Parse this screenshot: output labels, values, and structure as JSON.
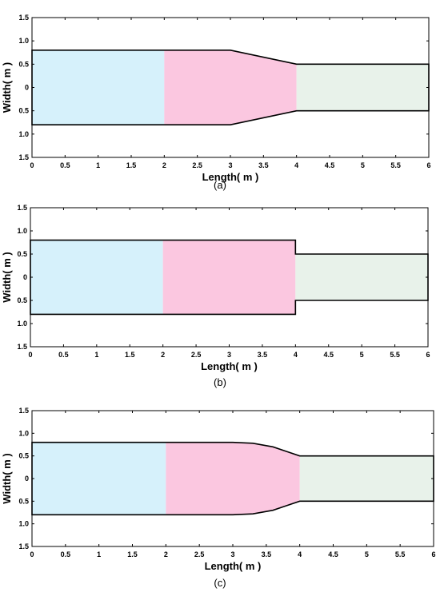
{
  "chart_data": [
    {
      "type": "diagram",
      "caption": "(a)",
      "xlabel": "Length( m )",
      "ylabel": "Width( m )",
      "xlim": [
        0,
        6
      ],
      "ylim": [
        -1.5,
        1.5
      ],
      "x_ticks": [
        "0",
        "0.5",
        "1",
        "1.5",
        "2",
        "2.5",
        "3",
        "3.5",
        "4",
        "4.5",
        "5",
        "5.5",
        "6"
      ],
      "y_ticks": [
        "1.5",
        "1.0",
        "0.5",
        "0",
        "0.5",
        "1.0",
        "1.5"
      ],
      "transition": "linear",
      "outline": [
        [
          0,
          0.8
        ],
        [
          2,
          0.8
        ],
        [
          3,
          0.8
        ],
        [
          4,
          0.5
        ],
        [
          6,
          0.5
        ],
        [
          6,
          -0.5
        ],
        [
          4,
          -0.5
        ],
        [
          3,
          -0.8
        ],
        [
          2,
          -0.8
        ],
        [
          0,
          -0.8
        ]
      ],
      "regions": [
        {
          "x": [
            0,
            2
          ],
          "color": "#d6f1fb"
        },
        {
          "x": [
            2,
            4
          ],
          "color": "#fbc7e0"
        },
        {
          "x": [
            4,
            6
          ],
          "color": "#e8f2ea"
        }
      ]
    },
    {
      "type": "diagram",
      "caption": "(b)",
      "xlabel": "Length( m )",
      "ylabel": "Width( m )",
      "xlim": [
        0,
        6
      ],
      "ylim": [
        -1.5,
        1.5
      ],
      "x_ticks": [
        "0",
        "0.5",
        "1",
        "1.5",
        "2",
        "2.5",
        "3",
        "3.5",
        "4",
        "4.5",
        "5",
        "5.5",
        "6"
      ],
      "y_ticks": [
        "1.5",
        "1.0",
        "0.5",
        "0",
        "0.5",
        "1.0",
        "1.5"
      ],
      "transition": "step",
      "outline": [
        [
          0,
          0.8
        ],
        [
          2,
          0.8
        ],
        [
          4,
          0.8
        ],
        [
          4,
          0.5
        ],
        [
          6,
          0.5
        ],
        [
          6,
          -0.5
        ],
        [
          4,
          -0.5
        ],
        [
          4,
          -0.8
        ],
        [
          2,
          -0.8
        ],
        [
          0,
          -0.8
        ]
      ],
      "regions": [
        {
          "x": [
            0,
            2
          ],
          "color": "#d6f1fb"
        },
        {
          "x": [
            2,
            4
          ],
          "color": "#fbc7e0"
        },
        {
          "x": [
            4,
            6
          ],
          "color": "#e8f2ea"
        }
      ]
    },
    {
      "type": "diagram",
      "caption": "(c)",
      "xlabel": "Length( m )",
      "ylabel": "Width( m )",
      "xlim": [
        0,
        6
      ],
      "ylim": [
        -1.5,
        1.5
      ],
      "x_ticks": [
        "0",
        "0.5",
        "1",
        "1.5",
        "2",
        "2.5",
        "3",
        "3.5",
        "4",
        "4.5",
        "5",
        "5.5",
        "6"
      ],
      "y_ticks": [
        "1.5",
        "1.0",
        "0.5",
        "0",
        "0.5",
        "1.0",
        "1.5"
      ],
      "transition": "curved",
      "outline": [
        [
          0,
          0.8
        ],
        [
          2,
          0.8
        ],
        [
          3,
          0.8
        ],
        [
          3.3,
          0.78
        ],
        [
          3.6,
          0.7
        ],
        [
          3.8,
          0.6
        ],
        [
          4,
          0.5
        ],
        [
          6,
          0.5
        ],
        [
          6,
          -0.5
        ],
        [
          4,
          -0.5
        ],
        [
          3.8,
          -0.6
        ],
        [
          3.6,
          -0.7
        ],
        [
          3.3,
          -0.78
        ],
        [
          3,
          -0.8
        ],
        [
          2,
          -0.8
        ],
        [
          0,
          -0.8
        ]
      ],
      "regions": [
        {
          "x": [
            0,
            2
          ],
          "color": "#d6f1fb"
        },
        {
          "x": [
            2,
            4
          ],
          "color": "#fbc7e0"
        },
        {
          "x": [
            4,
            6
          ],
          "color": "#e8f2ea"
        }
      ]
    }
  ]
}
